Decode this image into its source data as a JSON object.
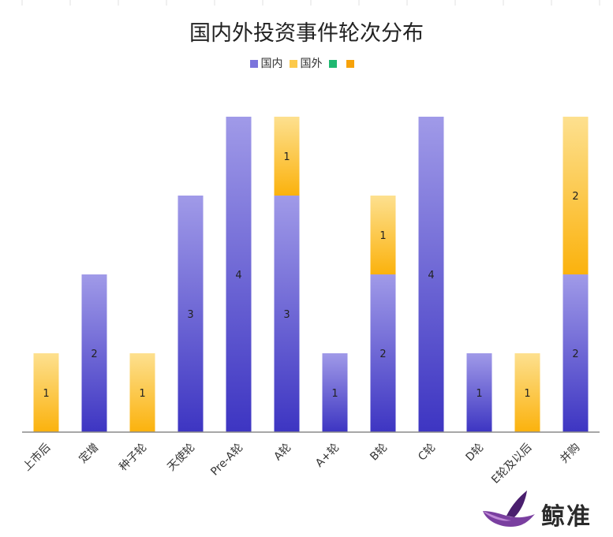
{
  "chart_data": {
    "type": "bar",
    "stacked": true,
    "title": "国内外投资事件轮次分布",
    "categories": [
      "上市后",
      "定增",
      "种子轮",
      "天使轮",
      "Pre-A轮",
      "A轮",
      "A+轮",
      "B轮",
      "C轮",
      "D轮",
      "E轮及以后",
      "并购"
    ],
    "series": [
      {
        "name": "国内",
        "values": [
          0,
          2,
          0,
          3,
          4,
          3,
          1,
          2,
          4,
          1,
          0,
          2
        ]
      },
      {
        "name": "国外",
        "values": [
          1,
          0,
          1,
          0,
          0,
          1,
          0,
          1,
          0,
          0,
          1,
          2
        ]
      },
      {
        "name": "",
        "values": [
          0,
          0,
          0,
          0,
          0,
          0,
          0,
          0,
          0,
          0,
          0,
          0
        ]
      },
      {
        "name": "",
        "values": [
          0,
          0,
          0,
          0,
          0,
          0,
          0,
          0,
          0,
          0,
          0,
          0
        ]
      }
    ],
    "ylim": [
      0,
      4
    ],
    "grid": false,
    "legend": "top-center",
    "colors": {
      "domestic_light": "#a09ae8",
      "domestic_dark": "#3d35c2",
      "foreign_light": "#fde08f",
      "foreign_dark": "#fbb20d",
      "series3": "#1fb871",
      "series4": "#f7a20a"
    }
  },
  "brand": {
    "name": "鲸准"
  }
}
